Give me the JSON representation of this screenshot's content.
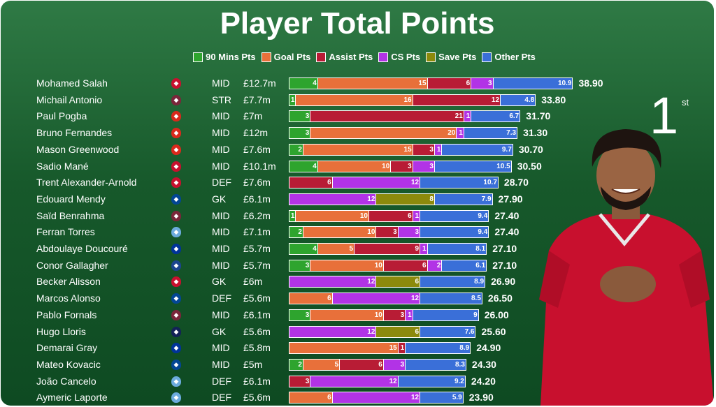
{
  "chart_data": {
    "type": "bar",
    "stacked": true,
    "orientation": "horizontal",
    "title": "Player Total Points",
    "legend_position": "top",
    "series": [
      {
        "name": "90 Mins Pts",
        "color": "#2ea42e"
      },
      {
        "name": "Goal Pts",
        "color": "#e8703a"
      },
      {
        "name": "Assist Pts",
        "color": "#b81c35"
      },
      {
        "name": "CS Pts",
        "color": "#b233e6"
      },
      {
        "name": "Save Pts",
        "color": "#8c8a0c"
      },
      {
        "name": "Other Pts",
        "color": "#3a6fd8"
      }
    ],
    "rows": [
      {
        "name": "Mohamed Salah",
        "club_icon": "liverpool-crest-icon",
        "position": "MID",
        "price": "£12.7m",
        "values": [
          4,
          15,
          6,
          3,
          0,
          10.9
        ],
        "total": "38.90"
      },
      {
        "name": "Michail Antonio",
        "club_icon": "west-ham-crest-icon",
        "position": "STR",
        "price": "£7.7m",
        "values": [
          1,
          16,
          12,
          0,
          0,
          4.8
        ],
        "total": "33.80"
      },
      {
        "name": "Paul Pogba",
        "club_icon": "man-united-crest-icon",
        "position": "MID",
        "price": "£7m",
        "values": [
          3,
          0,
          21,
          1,
          0,
          6.7
        ],
        "total": "31.70"
      },
      {
        "name": "Bruno Fernandes",
        "club_icon": "man-united-crest-icon",
        "position": "MID",
        "price": "£12m",
        "values": [
          3,
          20,
          0,
          1,
          0,
          7.3
        ],
        "total": "31.30"
      },
      {
        "name": "Mason Greenwood",
        "club_icon": "man-united-crest-icon",
        "position": "MID",
        "price": "£7.6m",
        "values": [
          2,
          15,
          3,
          1,
          0,
          9.7
        ],
        "total": "30.70"
      },
      {
        "name": "Sadio Mané",
        "club_icon": "liverpool-crest-icon",
        "position": "MID",
        "price": "£10.1m",
        "values": [
          4,
          10,
          3,
          3,
          0,
          10.5
        ],
        "total": "30.50"
      },
      {
        "name": "Trent Alexander-Arnold",
        "club_icon": "liverpool-crest-icon",
        "position": "DEF",
        "price": "£7.6m",
        "values": [
          0,
          0,
          6,
          12,
          0,
          10.7
        ],
        "total": "28.70"
      },
      {
        "name": "Edouard Mendy",
        "club_icon": "chelsea-crest-icon",
        "position": "GK",
        "price": "£6.1m",
        "values": [
          0,
          0,
          0,
          12,
          8,
          7.9
        ],
        "total": "27.90"
      },
      {
        "name": "Saïd Benrahma",
        "club_icon": "west-ham-crest-icon",
        "position": "MID",
        "price": "£6.2m",
        "values": [
          1,
          10,
          6,
          1,
          0,
          9.4
        ],
        "total": "27.40"
      },
      {
        "name": "Ferran Torres",
        "club_icon": "man-city-crest-icon",
        "position": "MID",
        "price": "£7.1m",
        "values": [
          2,
          10,
          3,
          3,
          0,
          9.4
        ],
        "total": "27.40"
      },
      {
        "name": "Abdoulaye Doucouré",
        "club_icon": "everton-crest-icon",
        "position": "MID",
        "price": "£5.7m",
        "values": [
          4,
          5,
          9,
          1,
          0,
          8.1
        ],
        "total": "27.10"
      },
      {
        "name": "Conor Gallagher",
        "club_icon": "crystal-palace-crest-icon",
        "position": "MID",
        "price": "£5.7m",
        "values": [
          3,
          10,
          6,
          2,
          0,
          6.1
        ],
        "total": "27.10"
      },
      {
        "name": "Becker Alisson",
        "club_icon": "liverpool-crest-icon",
        "position": "GK",
        "price": "£6m",
        "values": [
          0,
          0,
          0,
          12,
          6,
          8.9
        ],
        "total": "26.90"
      },
      {
        "name": "Marcos Alonso",
        "club_icon": "chelsea-crest-icon",
        "position": "DEF",
        "price": "£5.6m",
        "values": [
          0,
          6,
          0,
          12,
          0,
          8.5
        ],
        "total": "26.50"
      },
      {
        "name": "Pablo Fornals",
        "club_icon": "west-ham-crest-icon",
        "position": "MID",
        "price": "£6.1m",
        "values": [
          3,
          10,
          3,
          1,
          0,
          9.0
        ],
        "total": "26.00"
      },
      {
        "name": "Hugo Lloris",
        "club_icon": "tottenham-crest-icon",
        "position": "GK",
        "price": "£5.6m",
        "values": [
          0,
          0,
          0,
          12,
          6,
          7.6
        ],
        "total": "25.60"
      },
      {
        "name": "Demarai Gray",
        "club_icon": "everton-crest-icon",
        "position": "MID",
        "price": "£5.8m",
        "values": [
          0,
          15,
          1,
          0,
          0,
          8.9
        ],
        "total": "24.90"
      },
      {
        "name": "Mateo Kovacic",
        "club_icon": "chelsea-crest-icon",
        "position": "MID",
        "price": "£5m",
        "values": [
          2,
          5,
          6,
          3,
          0,
          8.3
        ],
        "total": "24.30"
      },
      {
        "name": "João Cancelo",
        "club_icon": "man-city-crest-icon",
        "position": "DEF",
        "price": "£6.1m",
        "values": [
          0,
          0,
          3,
          12,
          0,
          9.2
        ],
        "total": "24.20"
      },
      {
        "name": "Aymeric Laporte",
        "club_icon": "man-city-crest-icon",
        "position": "DEF",
        "price": "£5.6m",
        "values": [
          0,
          6,
          0,
          12,
          0,
          5.9
        ],
        "total": "23.90"
      }
    ]
  },
  "club_colors": {
    "liverpool-crest-icon": "#c8102e",
    "west-ham-crest-icon": "#7a263a",
    "man-united-crest-icon": "#da291c",
    "chelsea-crest-icon": "#034694",
    "man-city-crest-icon": "#6cabdd",
    "everton-crest-icon": "#003399",
    "crystal-palace-crest-icon": "#1b458f",
    "tottenham-crest-icon": "#132257"
  },
  "highlight": {
    "rank": "1",
    "rank_suffix": "st",
    "player_photo": "player-photo-icon"
  }
}
